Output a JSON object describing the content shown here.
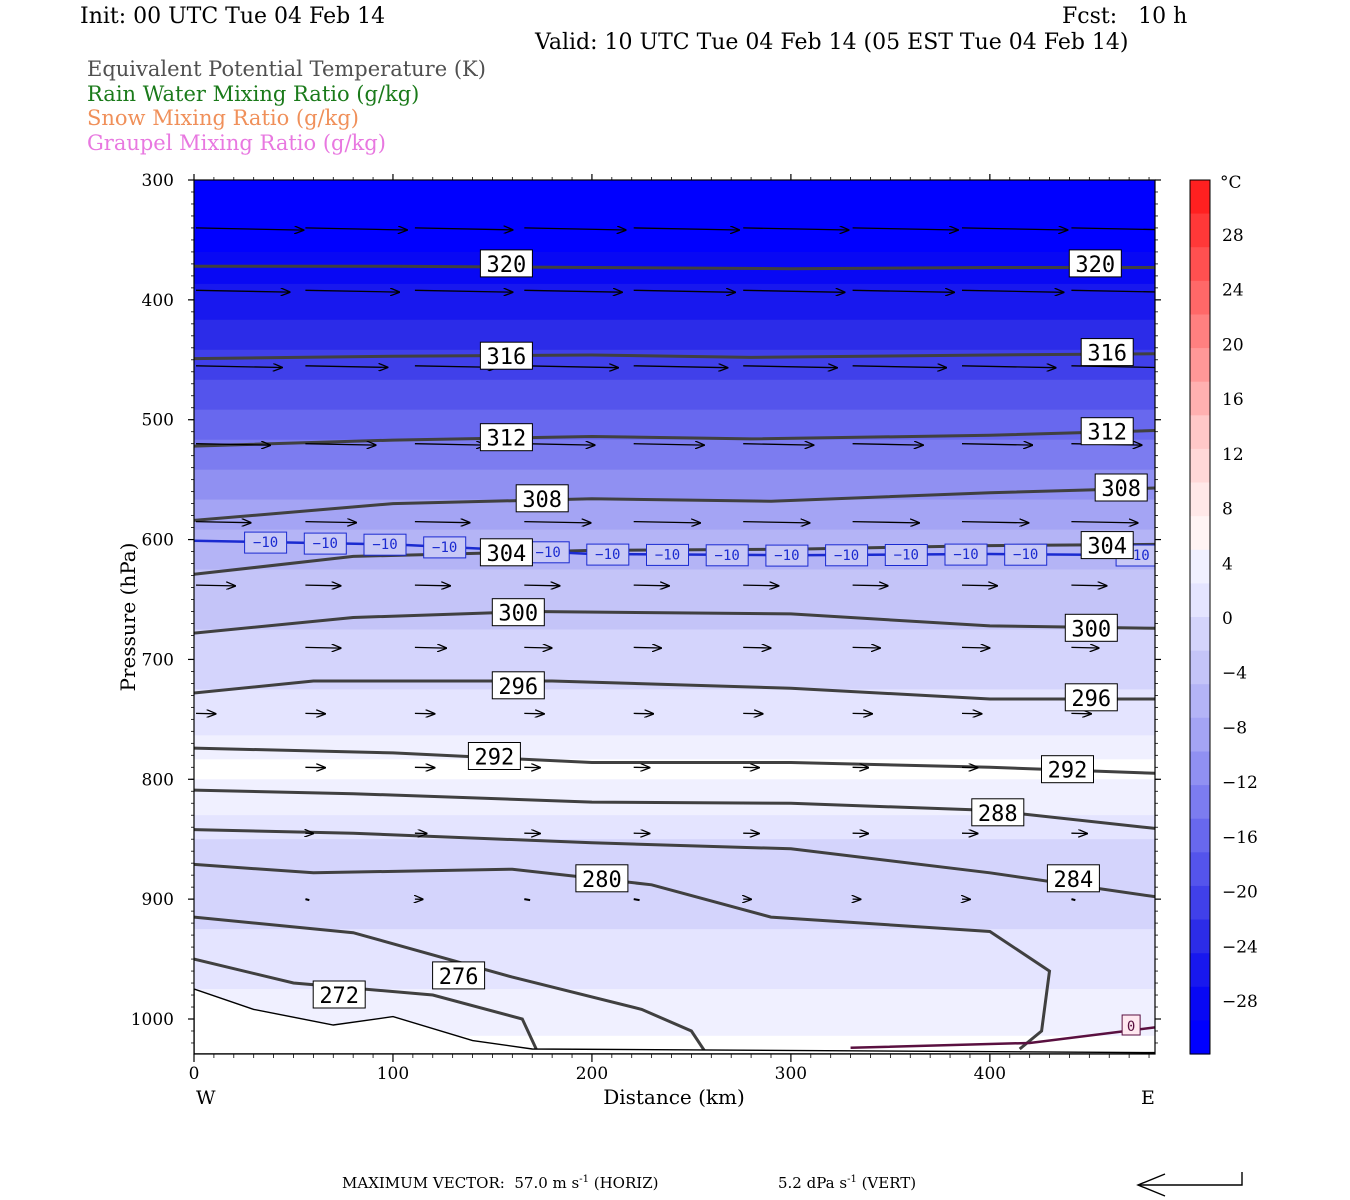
{
  "header": {
    "init": "Init: 00 UTC Tue 04 Feb 14",
    "fcst": "Fcst:   10 h",
    "valid": "Valid: 10 UTC Tue 04 Feb 14 (05 EST Tue 04 Feb 14)"
  },
  "legend": [
    {
      "label": "Equivalent Potential Temperature (K)",
      "color": "#505050"
    },
    {
      "label": "Rain Water Mixing Ratio (g/kg)",
      "color": "#1a7a1a"
    },
    {
      "label": "Snow Mixing Ratio (g/kg)",
      "color": "#f0905a"
    },
    {
      "label": "Graupel Mixing Ratio (g/kg)",
      "color": "#e878e0"
    }
  ],
  "footer": {
    "max_vector_prefix": "MAXIMUM VECTOR:  57.0 m s",
    "max_vector_suffix": " (HORIZ)",
    "vert_prefix": "5.2 dPa s",
    "vert_suffix": " (VERT)",
    "exponent": "-1"
  },
  "chart_data": {
    "type": "heatmap",
    "title": "",
    "xlabel": "Distance (km)",
    "ylabel": "Pressure (hPa)",
    "xlim": [
      0,
      483
    ],
    "ylim": [
      1028,
      300
    ],
    "x_ticks": [
      0,
      100,
      200,
      300,
      400
    ],
    "y_ticks": [
      300,
      400,
      500,
      600,
      700,
      800,
      900,
      1000
    ],
    "x_end_labels": {
      "left": "W",
      "right": "E"
    },
    "colorbar": {
      "unit": "°C",
      "labels": [
        "28",
        "24",
        "20",
        "16",
        "12",
        "8",
        "4",
        "0",
        "−4",
        "−8",
        "−12",
        "−16",
        "−20",
        "−24",
        "−28"
      ],
      "warm_colors": [
        "#ff2020",
        "#ff3838",
        "#ff5050",
        "#ff6868",
        "#ff8080",
        "#ff9898",
        "#ffb0b0",
        "#ffc8c8",
        "#ffd8d8",
        "#ffe8e8",
        "#fff4f4"
      ],
      "cold_colors": [
        "#ffffff",
        "#f0f0ff",
        "#e4e4ff",
        "#d4d4fc",
        "#c4c4f8",
        "#b4b4f6",
        "#a4a4f4",
        "#9090f2",
        "#7c7cf0",
        "#6868ee",
        "#5454ec",
        "#4040ea",
        "#2c2ce8",
        "#1818ee",
        "#0808f4",
        "#0000ff"
      ]
    },
    "temperature_bands": [
      {
        "p": 300,
        "t": -30
      },
      {
        "p": 360,
        "t": -30
      },
      {
        "p": 400,
        "t": -27
      },
      {
        "p": 450,
        "t": -23
      },
      {
        "p": 500,
        "t": -19
      },
      {
        "p": 550,
        "t": -15
      },
      {
        "p": 600,
        "t": -11
      },
      {
        "p": 650,
        "t": -9
      },
      {
        "p": 700,
        "t": -7
      },
      {
        "p": 750,
        "t": -5
      },
      {
        "p": 790,
        "t": -1
      },
      {
        "p": 850,
        "t": -6
      },
      {
        "p": 900,
        "t": -7
      },
      {
        "p": 950,
        "t": -5
      },
      {
        "p": 1000,
        "t": -3
      },
      {
        "p": 1028,
        "t": -1
      }
    ],
    "theta_e_contours": [
      {
        "value": "320",
        "points": [
          [
            0,
            372
          ],
          [
            100,
            372
          ],
          [
            200,
            373
          ],
          [
            300,
            374
          ],
          [
            400,
            373
          ],
          [
            483,
            373
          ]
        ],
        "labels": [
          [
            157,
            370
          ],
          [
            453,
            370
          ]
        ]
      },
      {
        "value": "316",
        "points": [
          [
            0,
            449
          ],
          [
            100,
            447
          ],
          [
            200,
            446
          ],
          [
            280,
            448
          ],
          [
            400,
            446
          ],
          [
            483,
            445
          ]
        ],
        "labels": [
          [
            157,
            447
          ],
          [
            459,
            444
          ]
        ]
      },
      {
        "value": "312",
        "points": [
          [
            0,
            522
          ],
          [
            100,
            517
          ],
          [
            200,
            514
          ],
          [
            280,
            516
          ],
          [
            400,
            513
          ],
          [
            483,
            509
          ]
        ],
        "labels": [
          [
            157,
            515
          ],
          [
            459,
            510
          ]
        ]
      },
      {
        "value": "308",
        "points": [
          [
            0,
            584
          ],
          [
            100,
            570
          ],
          [
            200,
            566
          ],
          [
            290,
            568
          ],
          [
            400,
            561
          ],
          [
            483,
            557
          ]
        ],
        "labels": [
          [
            175,
            566
          ],
          [
            466,
            557
          ]
        ]
      },
      {
        "value": "304",
        "points": [
          [
            0,
            629
          ],
          [
            80,
            614
          ],
          [
            200,
            609
          ],
          [
            300,
            608
          ],
          [
            400,
            605
          ],
          [
            483,
            604
          ]
        ],
        "labels": [
          [
            157,
            611
          ],
          [
            459,
            605
          ]
        ]
      },
      {
        "value": "300",
        "points": [
          [
            0,
            678
          ],
          [
            80,
            665
          ],
          [
            170,
            660
          ],
          [
            300,
            662
          ],
          [
            400,
            672
          ],
          [
            483,
            674
          ]
        ],
        "labels": [
          [
            163,
            661
          ],
          [
            451,
            674
          ]
        ]
      },
      {
        "value": "296",
        "points": [
          [
            0,
            728
          ],
          [
            60,
            718
          ],
          [
            180,
            718
          ],
          [
            300,
            724
          ],
          [
            400,
            733
          ],
          [
            483,
            733
          ]
        ],
        "labels": [
          [
            163,
            722
          ],
          [
            451,
            732
          ]
        ]
      },
      {
        "value": "292",
        "points": [
          [
            0,
            774
          ],
          [
            100,
            778
          ],
          [
            200,
            786
          ],
          [
            300,
            786
          ],
          [
            400,
            790
          ],
          [
            483,
            795
          ]
        ],
        "labels": [
          [
            151,
            781
          ],
          [
            439,
            792
          ]
        ]
      },
      {
        "value": "288",
        "points": [
          [
            0,
            809
          ],
          [
            80,
            812
          ],
          [
            200,
            819
          ],
          [
            300,
            820
          ],
          [
            400,
            826
          ],
          [
            483,
            841
          ]
        ],
        "labels": [
          [
            404,
            828
          ]
        ]
      },
      {
        "value": "284",
        "points": [
          [
            0,
            842
          ],
          [
            80,
            845
          ],
          [
            200,
            853
          ],
          [
            300,
            858
          ],
          [
            400,
            878
          ],
          [
            483,
            898
          ]
        ],
        "labels": [
          [
            442,
            883
          ]
        ]
      },
      {
        "value": "280",
        "points": [
          [
            0,
            871
          ],
          [
            60,
            878
          ],
          [
            160,
            875
          ],
          [
            230,
            888
          ],
          [
            290,
            915
          ],
          [
            400,
            927
          ],
          [
            430,
            960
          ],
          [
            426,
            1010
          ],
          [
            415,
            1025
          ]
        ],
        "labels": [
          [
            205,
            883
          ]
        ]
      },
      {
        "value": "276",
        "points": [
          [
            0,
            915
          ],
          [
            80,
            928
          ],
          [
            160,
            965
          ],
          [
            225,
            992
          ],
          [
            250,
            1010
          ],
          [
            258,
            1030
          ]
        ],
        "labels": [
          [
            133,
            964
          ]
        ]
      },
      {
        "value": "272",
        "points": [
          [
            0,
            950
          ],
          [
            50,
            970
          ],
          [
            120,
            980
          ],
          [
            165,
            1000
          ],
          [
            172,
            1025
          ]
        ],
        "labels": [
          [
            73,
            980
          ]
        ]
      }
    ],
    "isotherm_minus10": {
      "label": "−10",
      "points": [
        [
          0,
          601
        ],
        [
          100,
          604
        ],
        [
          200,
          612
        ],
        [
          300,
          613
        ],
        [
          400,
          612
        ],
        [
          483,
          613
        ]
      ],
      "label_x": [
        36,
        66,
        96,
        126,
        178,
        208,
        238,
        268,
        298,
        328,
        358,
        388,
        418,
        474
      ]
    },
    "zero_label": "0",
    "surface_pressure": [
      [
        0,
        975
      ],
      [
        30,
        992
      ],
      [
        70,
        1005
      ],
      [
        100,
        998
      ],
      [
        140,
        1018
      ],
      [
        170,
        1025
      ],
      [
        483,
        1028
      ]
    ],
    "wind_vectors": [
      {
        "p": 340,
        "row": [
          [
            0,
            55
          ],
          [
            55,
            52
          ],
          [
            110,
            50
          ],
          [
            165,
            52
          ],
          [
            220,
            54
          ],
          [
            275,
            54
          ],
          [
            330,
            54
          ],
          [
            385,
            54
          ],
          [
            440,
            54
          ],
          [
            483,
            20
          ]
        ]
      },
      {
        "p": 392,
        "row": [
          [
            0,
            48
          ],
          [
            55,
            48
          ],
          [
            110,
            50
          ],
          [
            165,
            50
          ],
          [
            220,
            52
          ],
          [
            275,
            52
          ],
          [
            330,
            52
          ],
          [
            385,
            52
          ],
          [
            440,
            52
          ],
          [
            483,
            20
          ]
        ]
      },
      {
        "p": 455,
        "row": [
          [
            0,
            44
          ],
          [
            55,
            42
          ],
          [
            110,
            42
          ],
          [
            165,
            48
          ],
          [
            220,
            48
          ],
          [
            275,
            48
          ],
          [
            330,
            48
          ],
          [
            385,
            48
          ],
          [
            440,
            48
          ]
        ]
      },
      {
        "p": 520,
        "row": [
          [
            0,
            38
          ],
          [
            55,
            36
          ],
          [
            110,
            36
          ],
          [
            165,
            36
          ],
          [
            220,
            36
          ],
          [
            275,
            36
          ],
          [
            330,
            36
          ],
          [
            385,
            36
          ],
          [
            440,
            36
          ]
        ]
      },
      {
        "p": 585,
        "row": [
          [
            0,
            28
          ],
          [
            55,
            26
          ],
          [
            110,
            28
          ],
          [
            165,
            34
          ],
          [
            220,
            34
          ],
          [
            275,
            34
          ],
          [
            330,
            34
          ],
          [
            385,
            34
          ],
          [
            440,
            34
          ]
        ]
      },
      {
        "p": 638,
        "row": [
          [
            0,
            20
          ],
          [
            55,
            18
          ],
          [
            110,
            18
          ],
          [
            165,
            18
          ],
          [
            220,
            18
          ],
          [
            275,
            18
          ],
          [
            330,
            18
          ],
          [
            385,
            18
          ],
          [
            440,
            18
          ]
        ]
      },
      {
        "p": 690,
        "row": [
          [
            55,
            18
          ],
          [
            110,
            16
          ],
          [
            165,
            14
          ],
          [
            220,
            14
          ],
          [
            275,
            14
          ],
          [
            330,
            14
          ],
          [
            385,
            14
          ],
          [
            440,
            14
          ]
        ]
      },
      {
        "p": 745,
        "row": [
          [
            0,
            10
          ],
          [
            55,
            10
          ],
          [
            110,
            10
          ],
          [
            165,
            10
          ],
          [
            220,
            10
          ],
          [
            275,
            10
          ],
          [
            330,
            10
          ],
          [
            385,
            10
          ],
          [
            440,
            10
          ]
        ]
      },
      {
        "p": 790,
        "row": [
          [
            55,
            10
          ],
          [
            110,
            10
          ],
          [
            165,
            8
          ],
          [
            220,
            8
          ],
          [
            275,
            8
          ],
          [
            330,
            8
          ],
          [
            385,
            8
          ],
          [
            440,
            8
          ]
        ]
      },
      {
        "p": 845,
        "row": [
          [
            55,
            4
          ],
          [
            110,
            6
          ],
          [
            165,
            8
          ],
          [
            220,
            8
          ],
          [
            275,
            8
          ],
          [
            330,
            8
          ],
          [
            385,
            8
          ],
          [
            440,
            8
          ]
        ]
      },
      {
        "p": 900,
        "row": [
          [
            55,
            2
          ],
          [
            110,
            4
          ],
          [
            165,
            3
          ],
          [
            220,
            3
          ],
          [
            275,
            4
          ],
          [
            330,
            4
          ],
          [
            385,
            4
          ],
          [
            440,
            2
          ]
        ]
      }
    ]
  }
}
